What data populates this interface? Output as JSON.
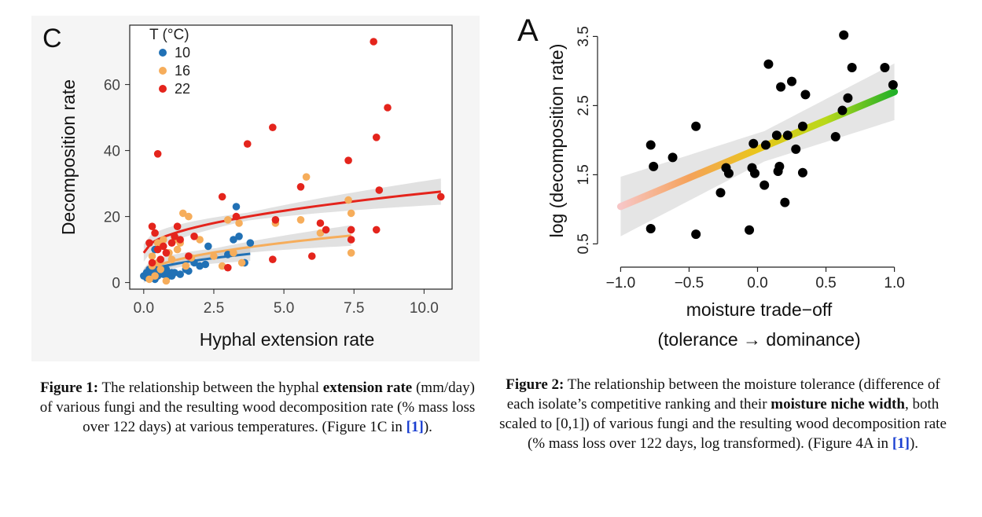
{
  "figure1": {
    "caption": {
      "label": "Figure 1:",
      "t1": " The relationship between the hyphal ",
      "bold": "extension rate",
      "t2": " (mm/day) of various fungi and the resulting wood decomposition rate (% mass loss over 122 days) at various temperatures. (Figure 1C in ",
      "ref": "[1]",
      "t3": ")."
    }
  },
  "figure2": {
    "caption": {
      "label": "Figure 2:",
      "t1": " The relationship between the moisture tolerance (difference of each isolate’s competitive ranking and their ",
      "bold": "moisture niche width",
      "t2": ", both scaled to [0,1]) of various fungi and the resulting wood decomposition rate (% mass loss over 122 days, log transformed). (Figure 4A in ",
      "ref": "[1]",
      "t3": ")."
    }
  },
  "chart_data": [
    {
      "type": "scatter",
      "panel_label": "C",
      "xlabel": "Hyphal extension rate",
      "ylabel": "Decomposition rate",
      "xlim": [
        -0.5,
        11
      ],
      "ylim": [
        -2,
        78
      ],
      "xticks": [
        0,
        2.5,
        5,
        7.5,
        10
      ],
      "xtick_labels": [
        "0.0",
        "2.5",
        "5.0",
        "7.5",
        "10.0"
      ],
      "yticks": [
        0,
        20,
        40,
        60
      ],
      "ytick_labels": [
        "0",
        "20",
        "40",
        "60"
      ],
      "grid": false,
      "legend": {
        "title": "T (°C)",
        "position": "top-left"
      },
      "series": [
        {
          "name": "10",
          "color": "#2171b5",
          "points": [
            [
              0.0,
              2
            ],
            [
              0.1,
              3
            ],
            [
              0.1,
              1.5
            ],
            [
              0.2,
              2.5
            ],
            [
              0.2,
              4
            ],
            [
              0.3,
              2
            ],
            [
              0.3,
              3
            ],
            [
              0.4,
              1
            ],
            [
              0.4,
              3.5
            ],
            [
              0.5,
              2
            ],
            [
              0.5,
              4
            ],
            [
              0.6,
              3
            ],
            [
              0.7,
              2.5
            ],
            [
              0.8,
              4
            ],
            [
              0.9,
              2
            ],
            [
              1.0,
              3
            ],
            [
              1.0,
              2
            ],
            [
              1.1,
              3
            ],
            [
              1.3,
              2.5
            ],
            [
              1.5,
              4
            ],
            [
              1.6,
              3.5
            ],
            [
              2.0,
              5
            ],
            [
              2.2,
              5.5
            ],
            [
              2.3,
              11
            ],
            [
              3.0,
              8.5
            ],
            [
              3.2,
              13
            ],
            [
              3.3,
              23
            ],
            [
              3.4,
              14
            ],
            [
              3.6,
              6
            ],
            [
              3.8,
              12
            ],
            [
              0.4,
              10
            ],
            [
              1.8,
              6
            ]
          ],
          "fit_x": [
            0,
            3.8
          ],
          "fit": {
            "a": 2.3,
            "b": 3.0,
            "c": 0.15
          }
        },
        {
          "name": "16",
          "color": "#f6ad5b",
          "points": [
            [
              0.2,
              1
            ],
            [
              0.3,
              5
            ],
            [
              0.3,
              8
            ],
            [
              0.4,
              2
            ],
            [
              0.5,
              6
            ],
            [
              0.5,
              12
            ],
            [
              0.6,
              4
            ],
            [
              0.7,
              13
            ],
            [
              0.8,
              0.5
            ],
            [
              0.9,
              9
            ],
            [
              1.0,
              7
            ],
            [
              1.1,
              13
            ],
            [
              1.2,
              10
            ],
            [
              1.3,
              12
            ],
            [
              1.4,
              21
            ],
            [
              1.5,
              5
            ],
            [
              1.6,
              20
            ],
            [
              1.7,
              7.5
            ],
            [
              2.0,
              13
            ],
            [
              2.5,
              8
            ],
            [
              2.8,
              5
            ],
            [
              3.0,
              19
            ],
            [
              3.2,
              9
            ],
            [
              3.4,
              18
            ],
            [
              3.5,
              6
            ],
            [
              4.7,
              18
            ],
            [
              5.6,
              19
            ],
            [
              5.8,
              32
            ],
            [
              6.3,
              15
            ],
            [
              7.3,
              25
            ],
            [
              7.4,
              21
            ],
            [
              7.4,
              9
            ]
          ],
          "fit_x": [
            0,
            7.4
          ],
          "fit": {
            "a": 2.0,
            "b": 4.5,
            "c": 0.0
          }
        },
        {
          "name": "22",
          "color": "#e4241c",
          "points": [
            [
              0.2,
              12
            ],
            [
              0.3,
              17
            ],
            [
              0.3,
              6
            ],
            [
              0.4,
              15
            ],
            [
              0.5,
              10
            ],
            [
              0.5,
              39
            ],
            [
              0.6,
              7
            ],
            [
              0.7,
              11
            ],
            [
              0.8,
              9
            ],
            [
              1.0,
              12
            ],
            [
              1.1,
              14
            ],
            [
              1.2,
              17
            ],
            [
              1.3,
              13
            ],
            [
              1.6,
              8
            ],
            [
              1.8,
              14
            ],
            [
              2.8,
              26
            ],
            [
              3.0,
              4.5
            ],
            [
              3.3,
              20
            ],
            [
              3.7,
              42
            ],
            [
              4.6,
              47
            ],
            [
              4.7,
              19
            ],
            [
              4.6,
              7
            ],
            [
              5.6,
              29
            ],
            [
              6.0,
              8
            ],
            [
              6.3,
              18
            ],
            [
              6.5,
              16
            ],
            [
              7.3,
              37
            ],
            [
              7.4,
              16
            ],
            [
              7.4,
              13
            ],
            [
              8.2,
              73
            ],
            [
              8.3,
              44
            ],
            [
              8.3,
              16
            ],
            [
              8.4,
              28
            ],
            [
              8.7,
              53
            ],
            [
              10.6,
              26
            ]
          ],
          "fit_x": [
            0,
            10.6
          ],
          "fit": {
            "a": 9.0,
            "b": 5.7,
            "c": 0.0
          }
        }
      ]
    },
    {
      "type": "scatter",
      "panel_label": "A",
      "xlabel": "moisture trade−off",
      "xlabel2": "(tolerance → dominance)",
      "ylabel": "log (decomposition rate)",
      "xlim": [
        -1.1,
        1.1
      ],
      "ylim": [
        0.3,
        3.8
      ],
      "xticks": [
        -1.0,
        -0.5,
        0.0,
        0.5,
        1.0
      ],
      "xtick_labels": [
        "−1.0",
        "−0.5",
        "0.0",
        "0.5",
        "1.0"
      ],
      "yticks": [
        0.5,
        1.5,
        2.5,
        3.5
      ],
      "ytick_labels": [
        "0.5",
        "1.5",
        "2.5",
        "3.5"
      ],
      "grid": false,
      "regression": {
        "intercept": 1.87,
        "slope": 0.83,
        "x_range": [
          -1.0,
          1.0
        ],
        "gradient": [
          "#f7c6c6",
          "#f5a25a",
          "#e9c61a",
          "#b8d81a",
          "#22b028"
        ]
      },
      "points": [
        [
          -0.78,
          1.93
        ],
        [
          -0.76,
          1.62
        ],
        [
          -0.78,
          0.72
        ],
        [
          -0.62,
          1.75
        ],
        [
          -0.45,
          2.2
        ],
        [
          -0.45,
          0.64
        ],
        [
          -0.27,
          1.24
        ],
        [
          -0.23,
          1.6
        ],
        [
          -0.21,
          1.52
        ],
        [
          -0.06,
          0.7
        ],
        [
          -0.04,
          1.6
        ],
        [
          -0.02,
          1.52
        ],
        [
          -0.03,
          1.95
        ],
        [
          0.05,
          1.35
        ],
        [
          0.08,
          3.1
        ],
        [
          0.06,
          1.93
        ],
        [
          0.14,
          2.07
        ],
        [
          0.15,
          1.55
        ],
        [
          0.17,
          2.77
        ],
        [
          0.16,
          1.62
        ],
        [
          0.2,
          1.1
        ],
        [
          0.22,
          2.07
        ],
        [
          0.25,
          2.85
        ],
        [
          0.28,
          1.87
        ],
        [
          0.33,
          2.2
        ],
        [
          0.33,
          1.53
        ],
        [
          0.35,
          2.66
        ],
        [
          0.57,
          2.05
        ],
        [
          0.62,
          2.43
        ],
        [
          0.63,
          3.52
        ],
        [
          0.66,
          2.61
        ],
        [
          0.69,
          3.05
        ],
        [
          0.93,
          3.05
        ],
        [
          0.99,
          2.8
        ]
      ]
    }
  ]
}
